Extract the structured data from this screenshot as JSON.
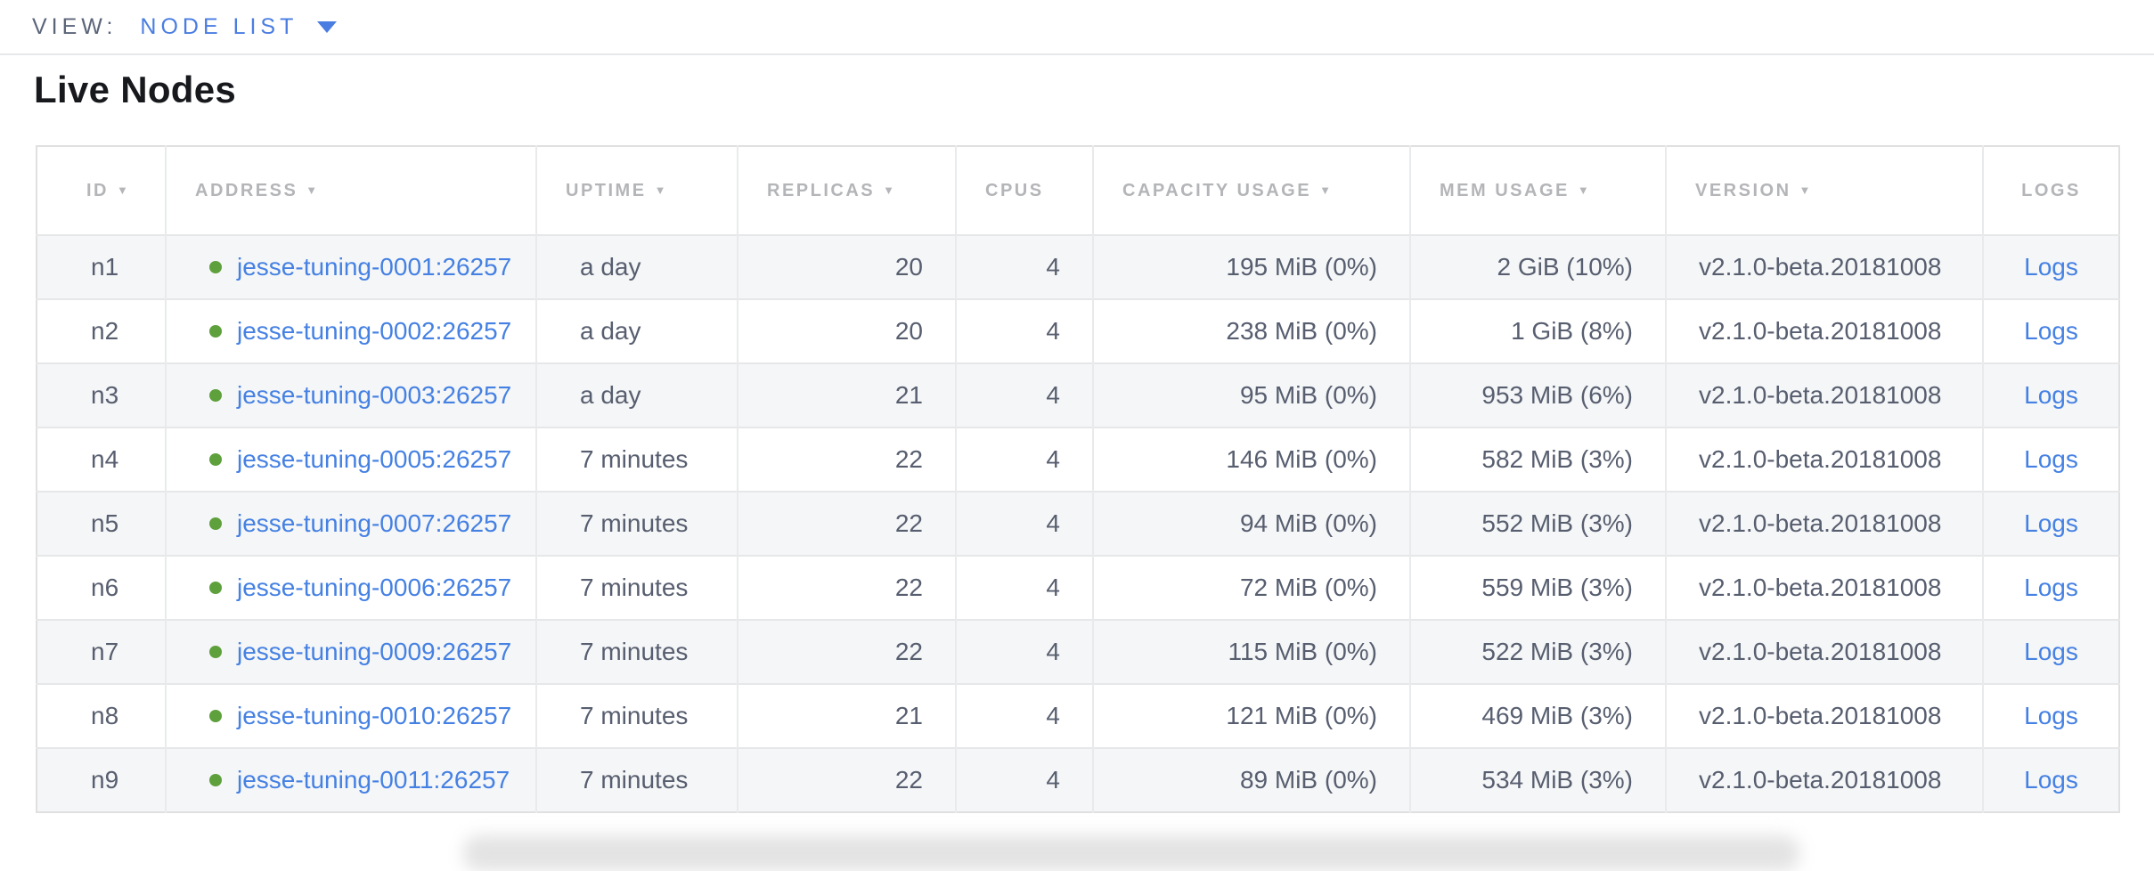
{
  "view_bar": {
    "label": "VIEW:",
    "selected": "NODE LIST"
  },
  "page": {
    "title": "Live Nodes"
  },
  "table": {
    "columns": [
      {
        "key": "id",
        "label": "ID",
        "sortable": true
      },
      {
        "key": "address",
        "label": "ADDRESS",
        "sortable": true
      },
      {
        "key": "uptime",
        "label": "UPTIME",
        "sortable": true
      },
      {
        "key": "replicas",
        "label": "REPLICAS",
        "sortable": true
      },
      {
        "key": "cpus",
        "label": "CPUS",
        "sortable": false
      },
      {
        "key": "capacity",
        "label": "CAPACITY USAGE",
        "sortable": true
      },
      {
        "key": "mem",
        "label": "MEM USAGE",
        "sortable": true
      },
      {
        "key": "version",
        "label": "VERSION",
        "sortable": true
      },
      {
        "key": "logs",
        "label": "LOGS",
        "sortable": false
      }
    ],
    "logs_label": "Logs",
    "rows": [
      {
        "id": "n1",
        "address": "jesse-tuning-0001:26257",
        "uptime": "a day",
        "replicas": "20",
        "cpus": "4",
        "capacity": "195 MiB (0%)",
        "mem": "2 GiB (10%)",
        "version": "v2.1.0-beta.20181008"
      },
      {
        "id": "n2",
        "address": "jesse-tuning-0002:26257",
        "uptime": "a day",
        "replicas": "20",
        "cpus": "4",
        "capacity": "238 MiB (0%)",
        "mem": "1 GiB (8%)",
        "version": "v2.1.0-beta.20181008"
      },
      {
        "id": "n3",
        "address": "jesse-tuning-0003:26257",
        "uptime": "a day",
        "replicas": "21",
        "cpus": "4",
        "capacity": "95 MiB (0%)",
        "mem": "953 MiB (6%)",
        "version": "v2.1.0-beta.20181008"
      },
      {
        "id": "n4",
        "address": "jesse-tuning-0005:26257",
        "uptime": "7 minutes",
        "replicas": "22",
        "cpus": "4",
        "capacity": "146 MiB (0%)",
        "mem": "582 MiB (3%)",
        "version": "v2.1.0-beta.20181008"
      },
      {
        "id": "n5",
        "address": "jesse-tuning-0007:26257",
        "uptime": "7 minutes",
        "replicas": "22",
        "cpus": "4",
        "capacity": "94 MiB (0%)",
        "mem": "552 MiB (3%)",
        "version": "v2.1.0-beta.20181008"
      },
      {
        "id": "n6",
        "address": "jesse-tuning-0006:26257",
        "uptime": "7 minutes",
        "replicas": "22",
        "cpus": "4",
        "capacity": "72 MiB (0%)",
        "mem": "559 MiB (3%)",
        "version": "v2.1.0-beta.20181008"
      },
      {
        "id": "n7",
        "address": "jesse-tuning-0009:26257",
        "uptime": "7 minutes",
        "replicas": "22",
        "cpus": "4",
        "capacity": "115 MiB (0%)",
        "mem": "522 MiB (3%)",
        "version": "v2.1.0-beta.20181008"
      },
      {
        "id": "n8",
        "address": "jesse-tuning-0010:26257",
        "uptime": "7 minutes",
        "replicas": "21",
        "cpus": "4",
        "capacity": "121 MiB (0%)",
        "mem": "469 MiB (3%)",
        "version": "v2.1.0-beta.20181008"
      },
      {
        "id": "n9",
        "address": "jesse-tuning-0011:26257",
        "uptime": "7 minutes",
        "replicas": "22",
        "cpus": "4",
        "capacity": "89 MiB (0%)",
        "mem": "534 MiB (3%)",
        "version": "v2.1.0-beta.20181008"
      }
    ]
  },
  "colors": {
    "accent_blue": "#4a7de2",
    "link_blue": "#4581e3",
    "live_green": "#5ea03c",
    "cell_text": "#575e6f",
    "header_text": "#b4b5b8",
    "heading_text": "#17191d"
  }
}
